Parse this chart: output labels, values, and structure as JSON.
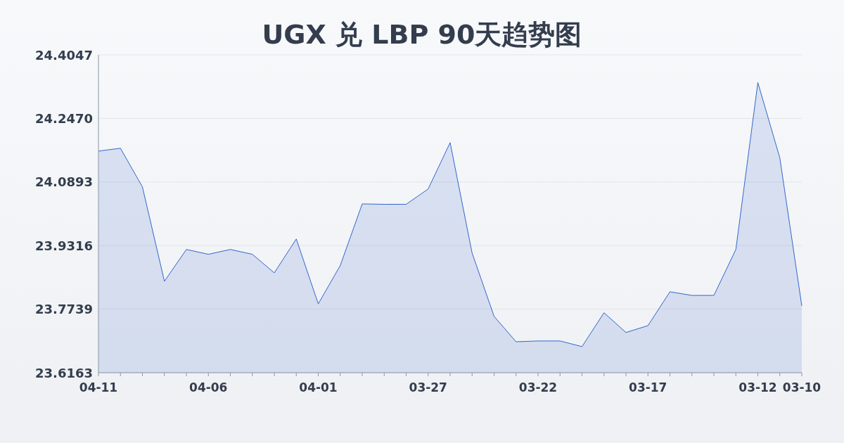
{
  "chart_data": {
    "type": "area",
    "title": "UGX 兑 LBP 90天趋势图",
    "categories": [
      "04-11",
      null,
      null,
      null,
      null,
      "04-06",
      null,
      null,
      null,
      null,
      "04-01",
      null,
      null,
      null,
      null,
      "03-27",
      null,
      null,
      null,
      null,
      "03-22",
      null,
      null,
      null,
      null,
      "03-17",
      null,
      null,
      null,
      null,
      "03-12",
      null,
      "03-10"
    ],
    "values": [
      24.166,
      24.173,
      24.077,
      23.843,
      23.922,
      23.91,
      23.922,
      23.91,
      23.864,
      23.948,
      23.787,
      23.882,
      24.035,
      24.034,
      24.034,
      24.072,
      24.187,
      23.913,
      23.756,
      23.693,
      23.695,
      23.695,
      23.681,
      23.765,
      23.716,
      23.733,
      23.817,
      23.808,
      23.808,
      23.922,
      24.336,
      24.149,
      23.782
    ],
    "color": "#3366cc",
    "ylim": [
      23.6163,
      24.4047
    ],
    "yticks": [
      {
        "value": 23.6163,
        "label": "23.6163"
      },
      {
        "value": 23.7739,
        "label": "23.7739"
      },
      {
        "value": 23.9316,
        "label": "23.9316"
      },
      {
        "value": 24.0893,
        "label": "24.0893"
      },
      {
        "value": 24.247,
        "label": "24.2470"
      },
      {
        "value": 24.4047,
        "label": "24.4047"
      }
    ],
    "grid": "y"
  }
}
